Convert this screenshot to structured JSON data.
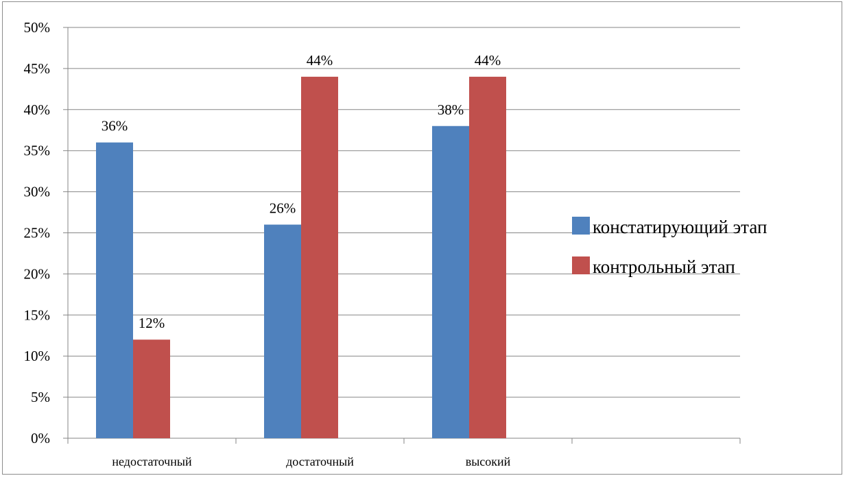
{
  "chart_data": {
    "type": "bar",
    "categories": [
      "недостаточный",
      "достаточный",
      "высокий"
    ],
    "series": [
      {
        "name": "констатирующий этап",
        "values": [
          36,
          26,
          38
        ],
        "labels": [
          "36%",
          "26%",
          "38%"
        ],
        "color": "#4f81bd"
      },
      {
        "name": "контрольный этап",
        "values": [
          12,
          44,
          44
        ],
        "labels": [
          "12%",
          "44%",
          "44%"
        ],
        "color": "#c0504d"
      }
    ],
    "ylim": [
      0,
      50
    ],
    "yticks": [
      "0%",
      "5%",
      "10%",
      "15%",
      "20%",
      "25%",
      "30%",
      "35%",
      "40%",
      "45%",
      "50%"
    ],
    "grid": true,
    "legend_position": "right",
    "gridline_color": "#868686"
  }
}
